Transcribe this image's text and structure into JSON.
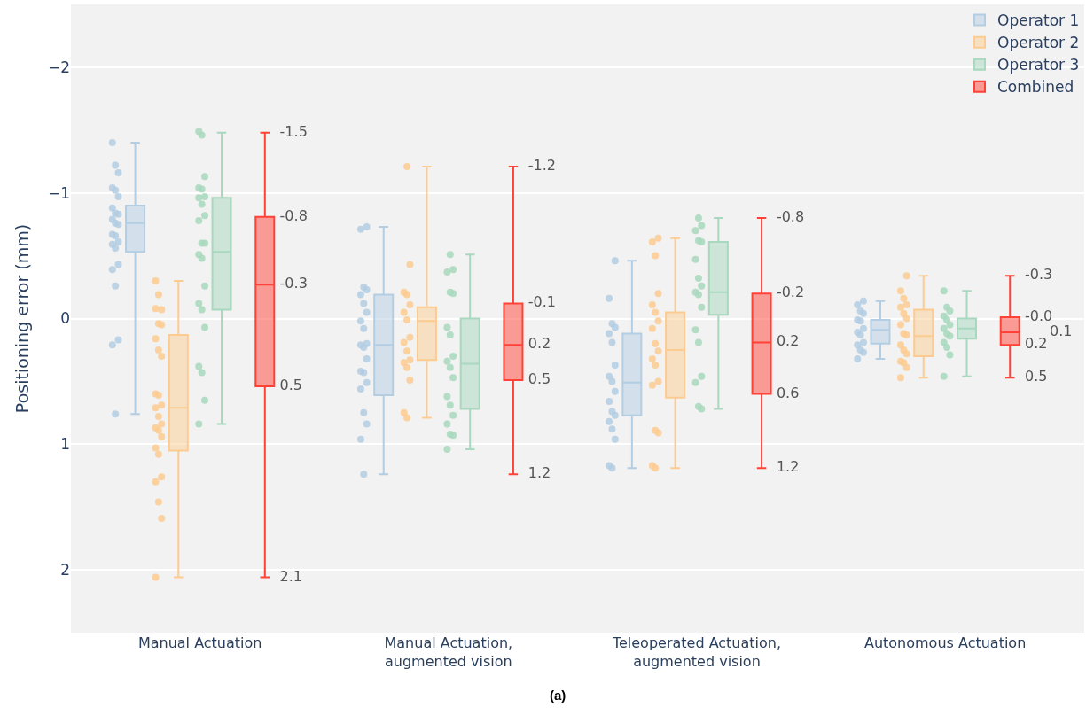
{
  "chart_data": {
    "type": "box",
    "ylabel": "Positioning error (mm)",
    "annotations": [
      "(a)"
    ],
    "categories": [
      "Manual Actuation",
      "Manual Actuation,\naugmented vision",
      "Teleoperated Actuation,\naugmented vision",
      "Autonomous Actuation"
    ],
    "ylim": [
      2.5,
      -2.5
    ],
    "yticks": [
      -2,
      -1,
      0,
      1,
      2
    ],
    "grid": "y",
    "legend": "top right",
    "marker": "circle",
    "series": [
      {
        "name": "Operator 1",
        "color": "#b3cde3",
        "boxes": [
          {
            "low": -1.4,
            "q1": -0.9,
            "median": -0.76,
            "q3": -0.53,
            "high": 0.76
          },
          {
            "low": -0.73,
            "q1": -0.19,
            "median": 0.21,
            "q3": 0.61,
            "high": 1.24
          },
          {
            "low": -0.46,
            "q1": 0.12,
            "median": 0.51,
            "q3": 0.77,
            "high": 1.19
          },
          {
            "low": -0.14,
            "q1": 0.01,
            "median": 0.09,
            "q3": 0.2,
            "high": 0.32
          }
        ]
      },
      {
        "name": "Operator 2",
        "color": "#fccb91",
        "boxes": [
          {
            "low": -0.3,
            "q1": 0.13,
            "median": 0.71,
            "q3": 1.05,
            "high": 2.06
          },
          {
            "low": -1.21,
            "q1": -0.09,
            "median": 0.02,
            "q3": 0.33,
            "high": 0.79
          },
          {
            "low": -0.64,
            "q1": -0.05,
            "median": 0.25,
            "q3": 0.63,
            "high": 1.19
          },
          {
            "low": -0.34,
            "q1": -0.07,
            "median": 0.14,
            "q3": 0.3,
            "high": 0.47
          }
        ]
      },
      {
        "name": "Operator 3",
        "color": "#a8d8bd",
        "boxes": [
          {
            "low": -1.48,
            "q1": -0.96,
            "median": -0.53,
            "q3": -0.07,
            "high": 0.84
          },
          {
            "low": -0.51,
            "q1": 0.0,
            "median": 0.36,
            "q3": 0.72,
            "high": 1.04
          },
          {
            "low": -0.8,
            "q1": -0.61,
            "median": -0.21,
            "q3": -0.03,
            "high": 0.72
          },
          {
            "low": -0.22,
            "q1": 0.0,
            "median": 0.08,
            "q3": 0.16,
            "high": 0.46
          }
        ]
      },
      {
        "name": "Combined",
        "color": "#ff4136",
        "boxes": [
          {
            "low": -1.48,
            "q1": -0.81,
            "median": -0.27,
            "q3": 0.54,
            "high": 2.06
          },
          {
            "low": -1.21,
            "q1": -0.12,
            "median": 0.21,
            "q3": 0.49,
            "high": 1.24
          },
          {
            "low": -0.8,
            "q1": -0.2,
            "median": 0.19,
            "q3": 0.6,
            "high": 1.19
          },
          {
            "low": -0.34,
            "q1": -0.01,
            "median": 0.11,
            "q3": 0.21,
            "high": 0.47
          }
        ],
        "value_labels": [
          [
            "-1.5",
            "-0.8",
            "-0.3",
            "0.5",
            "2.1"
          ],
          [
            "-1.2",
            "-0.1",
            "0.2",
            "0.5",
            "1.2"
          ],
          [
            "-0.8",
            "-0.2",
            "0.2",
            "0.6",
            "1.2"
          ],
          [
            "-0.3",
            "-0.0",
            "0.1",
            "0.2",
            "0.5"
          ]
        ]
      },
      {
        "type": "scatter",
        "color": "#b3cde3",
        "x": [
          "Manual Actuation",
          "Manual Actuation",
          "Manual Actuation",
          "Manual Actuation",
          "Manual Actuation",
          "Manual Actuation",
          "Manual Actuation",
          "Manual Actuation",
          "Manual Actuation",
          "Manual Actuation",
          "Manual Actuation",
          "Manual Actuation",
          "Manual Actuation",
          "Manual Actuation",
          "Manual Actuation",
          "Manual Actuation",
          "Manual Actuation",
          "Manual Actuation",
          "Manual Actuation",
          "Manual Actuation",
          "Manual Actuation",
          "Manual Actuation",
          "Manual Actuation",
          "Manual Actuation,\naugmented vision",
          "Manual Actuation,\naugmented vision",
          "Manual Actuation,\naugmented vision",
          "Manual Actuation,\naugmented vision",
          "Manual Actuation,\naugmented vision",
          "Manual Actuation,\naugmented vision",
          "Manual Actuation,\naugmented vision",
          "Manual Actuation,\naugmented vision",
          "Manual Actuation,\naugmented vision",
          "Manual Actuation,\naugmented vision",
          "Manual Actuation,\naugmented vision",
          "Manual Actuation,\naugmented vision",
          "Manual Actuation,\naugmented vision",
          "Manual Actuation,\naugmented vision",
          "Manual Actuation,\naugmented vision",
          "Manual Actuation,\naugmented vision",
          "Manual Actuation,\naugmented vision",
          "Manual Actuation,\naugmented vision",
          "Manual Actuation,\naugmented vision",
          "Manual Actuation,\naugmented vision",
          "Manual Actuation,\naugmented vision",
          "Teleoperated Actuation,\naugmented vision",
          "Teleoperated Actuation,\naugmented vision",
          "Teleoperated Actuation,\naugmented vision",
          "Teleoperated Actuation,\naugmented vision",
          "Teleoperated Actuation,\naugmented vision",
          "Teleoperated Actuation,\naugmented vision",
          "Teleoperated Actuation,\naugmented vision",
          "Teleoperated Actuation,\naugmented vision",
          "Teleoperated Actuation,\naugmented vision",
          "Teleoperated Actuation,\naugmented vision",
          "Teleoperated Actuation,\naugmented vision",
          "Teleoperated Actuation,\naugmented vision",
          "Teleoperated Actuation,\naugmented vision",
          "Teleoperated Actuation,\naugmented vision",
          "Teleoperated Actuation,\naugmented vision",
          "Teleoperated Actuation,\naugmented vision",
          "Teleoperated Actuation,\naugmented vision",
          "Teleoperated Actuation,\naugmented vision",
          "Autonomous Actuation",
          "Autonomous Actuation",
          "Autonomous Actuation",
          "Autonomous Actuation",
          "Autonomous Actuation",
          "Autonomous Actuation",
          "Autonomous Actuation",
          "Autonomous Actuation",
          "Autonomous Actuation",
          "Autonomous Actuation",
          "Autonomous Actuation",
          "Autonomous Actuation",
          "Autonomous Actuation",
          "Autonomous Actuation"
        ],
        "values": [
          -1.4,
          -1.22,
          -1.16,
          -1.04,
          -1.02,
          -0.97,
          -0.88,
          -0.84,
          -0.83,
          -0.79,
          -0.76,
          -0.75,
          -0.67,
          -0.66,
          -0.61,
          -0.59,
          -0.56,
          -0.43,
          -0.39,
          -0.26,
          0.17,
          0.21,
          0.76,
          -0.73,
          -0.71,
          -0.25,
          -0.23,
          -0.19,
          -0.12,
          -0.05,
          0.02,
          0.08,
          0.2,
          0.21,
          0.23,
          0.32,
          0.42,
          0.43,
          0.51,
          0.56,
          0.75,
          0.84,
          0.96,
          1.24,
          -0.46,
          -0.16,
          0.04,
          0.07,
          0.12,
          0.19,
          0.37,
          0.46,
          0.5,
          0.58,
          0.66,
          0.74,
          0.77,
          0.82,
          0.88,
          0.96,
          1.17,
          1.19,
          -0.14,
          -0.11,
          -0.06,
          -0.04,
          0.01,
          0.02,
          0.08,
          0.11,
          0.13,
          0.19,
          0.21,
          0.25,
          0.27,
          0.32
        ]
      },
      {
        "type": "scatter",
        "color": "#fccb91",
        "x": [
          "Manual Actuation",
          "Manual Actuation",
          "Manual Actuation",
          "Manual Actuation",
          "Manual Actuation",
          "Manual Actuation",
          "Manual Actuation",
          "Manual Actuation",
          "Manual Actuation",
          "Manual Actuation",
          "Manual Actuation",
          "Manual Actuation",
          "Manual Actuation",
          "Manual Actuation",
          "Manual Actuation",
          "Manual Actuation",
          "Manual Actuation",
          "Manual Actuation",
          "Manual Actuation",
          "Manual Actuation",
          "Manual Actuation",
          "Manual Actuation",
          "Manual Actuation",
          "Manual Actuation",
          "Manual Actuation",
          "Manual Actuation,\naugmented vision",
          "Manual Actuation,\naugmented vision",
          "Manual Actuation,\naugmented vision",
          "Manual Actuation,\naugmented vision",
          "Manual Actuation,\naugmented vision",
          "Manual Actuation,\naugmented vision",
          "Manual Actuation,\naugmented vision",
          "Manual Actuation,\naugmented vision",
          "Manual Actuation,\naugmented vision",
          "Manual Actuation,\naugmented vision",
          "Manual Actuation,\naugmented vision",
          "Manual Actuation,\naugmented vision",
          "Manual Actuation,\naugmented vision",
          "Manual Actuation,\naugmented vision",
          "Manual Actuation,\naugmented vision",
          "Manual Actuation,\naugmented vision",
          "Teleoperated Actuation,\naugmented vision",
          "Teleoperated Actuation,\naugmented vision",
          "Teleoperated Actuation,\naugmented vision",
          "Teleoperated Actuation,\naugmented vision",
          "Teleoperated Actuation,\naugmented vision",
          "Teleoperated Actuation,\naugmented vision",
          "Teleoperated Actuation,\naugmented vision",
          "Teleoperated Actuation,\naugmented vision",
          "Teleoperated Actuation,\naugmented vision",
          "Teleoperated Actuation,\naugmented vision",
          "Teleoperated Actuation,\naugmented vision",
          "Teleoperated Actuation,\naugmented vision",
          "Teleoperated Actuation,\naugmented vision",
          "Teleoperated Actuation,\naugmented vision",
          "Teleoperated Actuation,\naugmented vision",
          "Teleoperated Actuation,\naugmented vision",
          "Teleoperated Actuation,\naugmented vision",
          "Teleoperated Actuation,\naugmented vision",
          "Autonomous Actuation",
          "Autonomous Actuation",
          "Autonomous Actuation",
          "Autonomous Actuation",
          "Autonomous Actuation",
          "Autonomous Actuation",
          "Autonomous Actuation",
          "Autonomous Actuation",
          "Autonomous Actuation",
          "Autonomous Actuation",
          "Autonomous Actuation",
          "Autonomous Actuation",
          "Autonomous Actuation",
          "Autonomous Actuation",
          "Autonomous Actuation",
          "Autonomous Actuation",
          "Autonomous Actuation"
        ],
        "values": [
          -0.3,
          -0.19,
          -0.07,
          -0.08,
          0.04,
          0.05,
          0.16,
          0.25,
          0.3,
          0.6,
          0.61,
          0.69,
          0.71,
          0.78,
          0.84,
          0.87,
          0.89,
          0.94,
          1.03,
          1.08,
          1.26,
          1.3,
          1.46,
          1.59,
          2.06,
          -1.21,
          -0.43,
          -0.21,
          -0.19,
          -0.11,
          -0.05,
          0.01,
          0.15,
          0.19,
          0.26,
          0.33,
          0.35,
          0.39,
          0.49,
          0.75,
          0.79,
          -0.64,
          -0.61,
          -0.5,
          -0.2,
          -0.11,
          -0.05,
          0.02,
          0.08,
          0.2,
          0.26,
          0.32,
          0.37,
          0.5,
          0.53,
          0.89,
          0.91,
          1.17,
          1.19,
          -0.34,
          -0.22,
          -0.16,
          -0.11,
          -0.09,
          -0.04,
          0.0,
          0.05,
          0.12,
          0.13,
          0.21,
          0.25,
          0.28,
          0.34,
          0.35,
          0.39,
          0.47
        ]
      },
      {
        "type": "scatter",
        "color": "#a8d8bd",
        "x": [
          "Manual Actuation",
          "Manual Actuation",
          "Manual Actuation",
          "Manual Actuation",
          "Manual Actuation",
          "Manual Actuation",
          "Manual Actuation",
          "Manual Actuation",
          "Manual Actuation",
          "Manual Actuation",
          "Manual Actuation",
          "Manual Actuation",
          "Manual Actuation",
          "Manual Actuation",
          "Manual Actuation",
          "Manual Actuation",
          "Manual Actuation",
          "Manual Actuation",
          "Manual Actuation",
          "Manual Actuation",
          "Manual Actuation",
          "Manual Actuation",
          "Manual Actuation,\naugmented vision",
          "Manual Actuation,\naugmented vision",
          "Manual Actuation,\naugmented vision",
          "Manual Actuation,\naugmented vision",
          "Manual Actuation,\naugmented vision",
          "Manual Actuation,\naugmented vision",
          "Manual Actuation,\naugmented vision",
          "Manual Actuation,\naugmented vision",
          "Manual Actuation,\naugmented vision",
          "Manual Actuation,\naugmented vision",
          "Manual Actuation,\naugmented vision",
          "Manual Actuation,\naugmented vision",
          "Manual Actuation,\naugmented vision",
          "Manual Actuation,\naugmented vision",
          "Manual Actuation,\naugmented vision",
          "Manual Actuation,\naugmented vision",
          "Manual Actuation,\naugmented vision",
          "Manual Actuation,\naugmented vision",
          "Teleoperated Actuation,\naugmented vision",
          "Teleoperated Actuation,\naugmented vision",
          "Teleoperated Actuation,\naugmented vision",
          "Teleoperated Actuation,\naugmented vision",
          "Teleoperated Actuation,\naugmented vision",
          "Teleoperated Actuation,\naugmented vision",
          "Teleoperated Actuation,\naugmented vision",
          "Teleoperated Actuation,\naugmented vision",
          "Teleoperated Actuation,\naugmented vision",
          "Teleoperated Actuation,\naugmented vision",
          "Teleoperated Actuation,\naugmented vision",
          "Teleoperated Actuation,\naugmented vision",
          "Teleoperated Actuation,\naugmented vision",
          "Teleoperated Actuation,\naugmented vision",
          "Teleoperated Actuation,\naugmented vision",
          "Teleoperated Actuation,\naugmented vision",
          "Teleoperated Actuation,\naugmented vision",
          "Autonomous Actuation",
          "Autonomous Actuation",
          "Autonomous Actuation",
          "Autonomous Actuation",
          "Autonomous Actuation",
          "Autonomous Actuation",
          "Autonomous Actuation",
          "Autonomous Actuation",
          "Autonomous Actuation",
          "Autonomous Actuation",
          "Autonomous Actuation",
          "Autonomous Actuation",
          "Autonomous Actuation"
        ],
        "values": [
          -1.49,
          -1.46,
          -1.13,
          -1.04,
          -1.03,
          -0.97,
          -0.96,
          -0.91,
          -0.82,
          -0.78,
          -0.6,
          -0.6,
          -0.51,
          -0.48,
          -0.26,
          -0.12,
          -0.07,
          0.07,
          0.38,
          0.43,
          0.65,
          0.84,
          -0.51,
          -0.39,
          -0.37,
          -0.21,
          -0.2,
          0.07,
          0.13,
          0.3,
          0.34,
          0.39,
          0.47,
          0.62,
          0.69,
          0.77,
          0.84,
          0.92,
          0.93,
          1.04,
          -0.8,
          -0.74,
          -0.7,
          -0.62,
          -0.61,
          -0.47,
          -0.32,
          -0.26,
          -0.21,
          -0.19,
          -0.09,
          0.09,
          0.19,
          0.46,
          0.51,
          0.7,
          0.72,
          -0.22,
          -0.09,
          -0.06,
          -0.02,
          0.01,
          0.05,
          0.08,
          0.12,
          0.14,
          0.19,
          0.23,
          0.29,
          0.46
        ]
      }
    ]
  }
}
